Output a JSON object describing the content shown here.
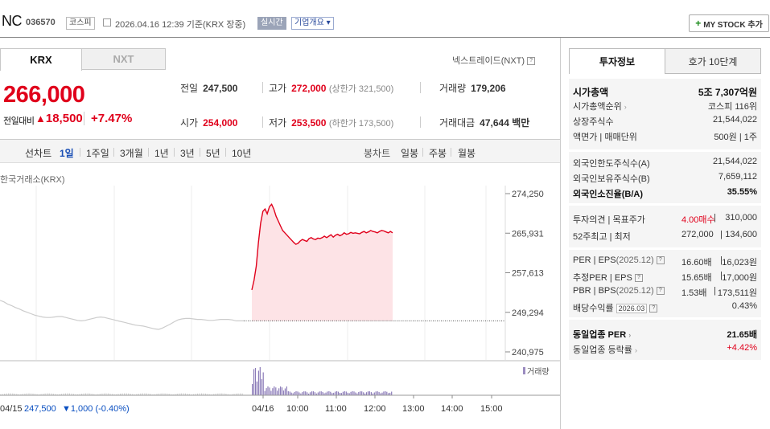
{
  "header": {
    "name": "NC",
    "code": "036570",
    "market": "코스피",
    "datetime": "2026.04.16 12:39",
    "basis": "기준(KRX 장중)",
    "realtime": "실시간",
    "company_info": "기업개요",
    "mystock_button": "MY STOCK 추가"
  },
  "exchange_tabs": {
    "krx": "KRX",
    "nxt": "NXT",
    "nxt_label": "넥스트레이드(NXT)"
  },
  "quote": {
    "price": "266,000",
    "change_label": "전일대비",
    "change_amount": "18,500",
    "change_pct": "+7.47%"
  },
  "stats": {
    "prev_close": {
      "label": "전일",
      "value": "247,500"
    },
    "high": {
      "label": "고가",
      "value": "272,000",
      "sub": "(상한가 321,500)"
    },
    "volume": {
      "label": "거래량",
      "value": "179,206"
    },
    "open": {
      "label": "시가",
      "value": "254,000"
    },
    "low": {
      "label": "저가",
      "value": "253,500",
      "sub": "(하한가 173,500)"
    },
    "amount": {
      "label": "거래대금",
      "value": "47,644",
      "unit": "백만"
    }
  },
  "period_tabs": {
    "label": "선차트",
    "items": [
      "1일",
      "1주일",
      "3개월",
      "1년",
      "3년",
      "5년",
      "10년"
    ],
    "active": "1일",
    "candle_label": "봉차트",
    "candle_items": [
      "일봉",
      "주봉",
      "월봉"
    ]
  },
  "chart_data": {
    "type": "line",
    "source_label": "한국거래소(KRX)",
    "y_ticks": [
      "274,250",
      "265,931",
      "257,613",
      "249,294",
      "240,975"
    ],
    "y_range": [
      240975,
      274250
    ],
    "x_ticks": [
      "04/15",
      "04/16",
      "10:00",
      "11:00",
      "12:00",
      "13:00",
      "14:00",
      "15:00"
    ],
    "reference_price": 247500,
    "series": [
      {
        "name": "",
        "color": "#cccccc",
        "values": [
          251800,
          251500,
          251000,
          250700,
          250300,
          250000,
          249600,
          249300,
          249000,
          248700,
          248500,
          248300,
          248200,
          248200,
          248300,
          248400,
          248400,
          248200,
          248000,
          247800,
          247600,
          247500,
          247600,
          247800,
          248000,
          248200,
          248300,
          248200,
          248000,
          247800,
          247600,
          247400,
          247200,
          247000,
          246800,
          246600,
          246500,
          246400,
          246200,
          246000,
          245800,
          245700,
          246000,
          246400,
          246800,
          247300,
          247700,
          247900,
          248000,
          248000,
          247900,
          247800,
          247800,
          247700,
          247600,
          247600,
          247700,
          247800,
          247800,
          247800,
          247700,
          247500,
          247500,
          247500
        ]
      },
      {
        "name": "",
        "color": "#e0001b",
        "values": [
          254000,
          256000,
          259000,
          264000,
          268000,
          270500,
          271000,
          270000,
          271500,
          272000,
          271000,
          269500,
          268500,
          267500,
          266500,
          266000,
          265500,
          265000,
          264500,
          264000,
          263600,
          263800,
          264300,
          264600,
          264400,
          264200,
          264800,
          265000,
          264700,
          264600,
          264900,
          264800,
          265000,
          265300,
          265000,
          265300,
          265600,
          265100,
          265500,
          265700,
          265400,
          265600,
          266000,
          265700,
          265800,
          266100,
          265900,
          266000,
          265900,
          265800,
          266100,
          266300,
          266000,
          266200,
          266500,
          266300,
          266200,
          266000,
          266300,
          266500,
          266400,
          266200,
          266000,
          266300,
          266000
        ]
      }
    ],
    "volume_label": "거래량",
    "footer": {
      "date": "04/15",
      "price": "247,500",
      "change": "▼1,000 (-0.40%)"
    }
  },
  "right_panel": {
    "tabs": [
      "투자정보",
      "호가 10단계"
    ],
    "rows1": [
      {
        "label": "시가총액",
        "value": "5조 7,307억원",
        "bold": true
      },
      {
        "label": "시가총액순위",
        "value": "코스피 116위"
      },
      {
        "label": "상장주식수",
        "value": "21,544,022"
      },
      {
        "label": "액면가 | 매매단위",
        "value": "500원 | 1주"
      }
    ],
    "rows2": [
      {
        "label": "외국인한도주식수(A)",
        "value": "21,544,022"
      },
      {
        "label": "외국인보유주식수(B)",
        "value": "7,659,112"
      },
      {
        "label": "외국인소진율(B/A)",
        "value": "35.55%",
        "bold": true
      }
    ],
    "rows3": [
      {
        "label": "투자의견 | 목표주가",
        "mid": "4.00매수",
        "value": "310,000"
      },
      {
        "label": "52주최고 | 최저",
        "mid": "272,000",
        "value": "134,600"
      }
    ],
    "rows4": [
      {
        "label": "PER | EPS",
        "note": "(2025.12)",
        "mid": "16.60배",
        "value": "16,023원"
      },
      {
        "label": "추정PER | EPS",
        "mid": "15.65배",
        "value": "17,000원"
      },
      {
        "label": "PBR | BPS",
        "note": "(2025.12)",
        "mid": "1.53배",
        "value": "173,511원"
      },
      {
        "label": "배당수익률",
        "note": "2026.03",
        "value": "0.43%"
      }
    ],
    "rows5": [
      {
        "label": "동일업종 PER",
        "value": "21.65배",
        "bold": true
      },
      {
        "label": "동일업종 등락률",
        "value": "+4.42%"
      }
    ]
  }
}
